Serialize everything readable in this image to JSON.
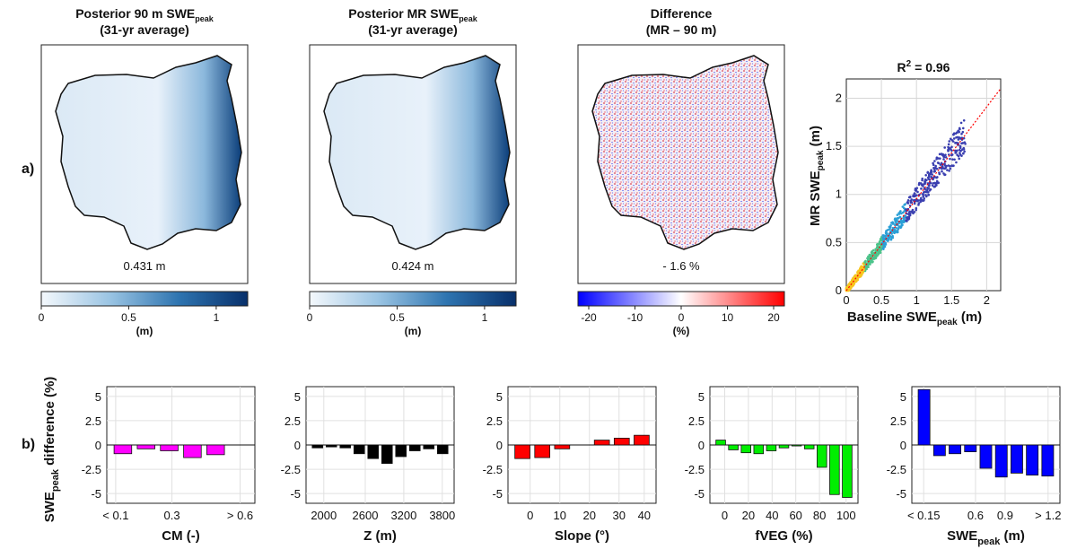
{
  "panel_labels": {
    "a": "a)",
    "b": "b)"
  },
  "maps": [
    {
      "title_main": "Posterior 90 m SWE",
      "title_sub": "peak",
      "title_line2": "(31-yr average)",
      "value": "0.431 m",
      "colorbar": {
        "ticks": [
          "0",
          "0.5",
          "1"
        ],
        "unit": "(m)",
        "colors": [
          "#f4f8fc",
          "#9ac4e3",
          "#2e74b0",
          "#08306b"
        ]
      }
    },
    {
      "title_main": "Posterior MR SWE",
      "title_sub": "peak",
      "title_line2": "(31-yr average)",
      "value": "0.424 m",
      "colorbar": {
        "ticks": [
          "0",
          "0.5",
          "1"
        ],
        "unit": "(m)",
        "colors": [
          "#f4f8fc",
          "#9ac4e3",
          "#2e74b0",
          "#08306b"
        ]
      }
    },
    {
      "title_main": "Difference",
      "title_sub": "",
      "title_line2": "(MR – 90 m)",
      "value": "- 1.6 %",
      "colorbar": {
        "ticks": [
          "-20",
          "-10",
          "0",
          "10",
          "20"
        ],
        "unit": "(%)",
        "colors": [
          "#0000ff",
          "#ffffff",
          "#ff0000"
        ]
      }
    }
  ],
  "chart_data": [
    {
      "type": "scatter",
      "title": "R² = 0.96",
      "title_main": "R",
      "title_sup": "2",
      "title_rest": " = 0.96",
      "xlabel": "Baseline SWE",
      "xlabel_sub": "peak",
      "xlabel_unit": " (m)",
      "ylabel": "MR SWE",
      "ylabel_sub": "peak",
      "ylabel_unit": " (m)",
      "xlim": [
        0,
        2.2
      ],
      "ylim": [
        0,
        2.2
      ],
      "xticks": [
        "0",
        "0.5",
        "1",
        "1.5",
        "2"
      ],
      "yticks": [
        "0",
        "0.5",
        "1",
        "1.5",
        "2"
      ],
      "fit_line": {
        "x": [
          0,
          2.2
        ],
        "y": [
          0,
          2.1
        ],
        "color": "#ff0000"
      },
      "grid": true
    },
    {
      "type": "bar",
      "color": "#ff00ff",
      "ylabel_main": "SWE",
      "ylabel_sub": "peak",
      "ylabel_rest": " difference (%)",
      "xlabel": "CM (-)",
      "xticks": [
        "< 0.1",
        "0.3",
        "> 0.6"
      ],
      "yticks": [
        "5",
        "2.5",
        "0",
        "-2.5",
        "-5"
      ],
      "ylim": [
        -6,
        6
      ],
      "values": [
        -0.9,
        -0.4,
        -0.6,
        -1.3,
        -1.0,
        0
      ]
    },
    {
      "type": "bar",
      "color": "#000000",
      "xlabel": "Z (m)",
      "xticks": [
        "2000",
        "2600",
        "3200",
        "3800"
      ],
      "yticks": [
        "5",
        "2.5",
        "0",
        "-2.5",
        "-5"
      ],
      "ylim": [
        -6,
        6
      ],
      "values": [
        -0.3,
        -0.2,
        -0.3,
        -0.9,
        -1.4,
        -1.9,
        -1.2,
        -0.6,
        -0.4,
        -0.9
      ]
    },
    {
      "type": "bar",
      "color": "#ff0000",
      "xlabel": "Slope (°)",
      "xticks": [
        "0",
        "10",
        "20",
        "30",
        "40"
      ],
      "yticks": [
        "5",
        "2.5",
        "0",
        "-2.5",
        "-5"
      ],
      "ylim": [
        -6,
        6
      ],
      "values": [
        -1.4,
        -1.3,
        -0.4,
        0,
        0.5,
        0.7,
        1.0
      ]
    },
    {
      "type": "bar",
      "color": "#00ee00",
      "xlabel": "fVEG (%)",
      "xticks": [
        "0",
        "20",
        "40",
        "60",
        "80",
        "100"
      ],
      "yticks": [
        "5",
        "2.5",
        "0",
        "-2.5",
        "-5"
      ],
      "ylim": [
        -6,
        6
      ],
      "values": [
        0.5,
        -0.5,
        -0.8,
        -0.9,
        -0.6,
        -0.3,
        -0.1,
        -0.4,
        -2.3,
        -5.1,
        -5.4
      ]
    },
    {
      "type": "bar",
      "color": "#0000ff",
      "xlabel_main": "SWE",
      "xlabel_sub": "peak",
      "xlabel_unit": " (m)",
      "xticks": [
        "< 0.15",
        "0.6",
        "0.9",
        "> 1.2"
      ],
      "yticks": [
        "5",
        "2.5",
        "0",
        "-2.5",
        "-5"
      ],
      "ylim": [
        -6,
        6
      ],
      "values": [
        5.7,
        -1.1,
        -0.9,
        -0.7,
        -2.4,
        -3.3,
        -2.9,
        -3.1,
        -3.2
      ]
    }
  ]
}
